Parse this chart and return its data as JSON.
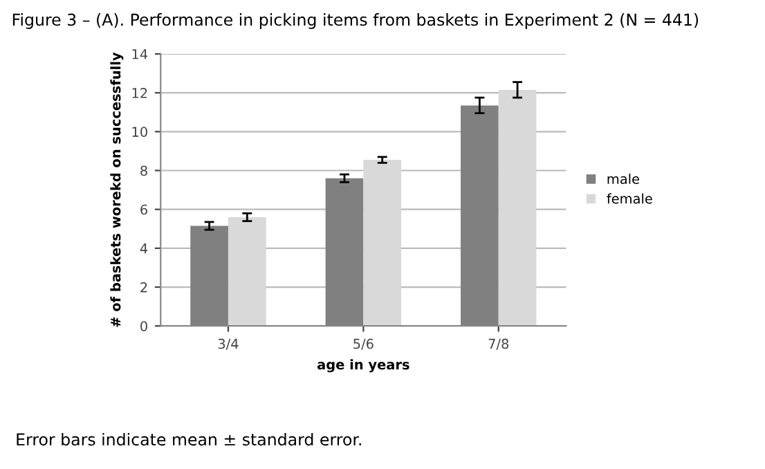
{
  "chart_data": {
    "type": "bar",
    "title": "Figure 3 – (A). Performance in picking items from baskets in Experiment 2 (N = 441)",
    "xlabel": "age in years",
    "ylabel": "# of baskets worekd on successfully",
    "categories": [
      "3/4",
      "5/6",
      "7/8"
    ],
    "series": [
      {
        "name": "male",
        "color": "#808080",
        "values": [
          5.15,
          7.6,
          11.35
        ],
        "errors": [
          0.2,
          0.2,
          0.4
        ]
      },
      {
        "name": "female",
        "color": "#d9d9d9",
        "values": [
          5.6,
          8.55,
          12.15
        ],
        "errors": [
          0.2,
          0.15,
          0.4
        ]
      }
    ],
    "ylim": [
      0,
      14
    ],
    "yticks": [
      0,
      2,
      4,
      6,
      8,
      10,
      12,
      14
    ],
    "grid": "y",
    "legend": "right",
    "annotations": [
      "Error bars indicate mean ± standard error."
    ]
  }
}
